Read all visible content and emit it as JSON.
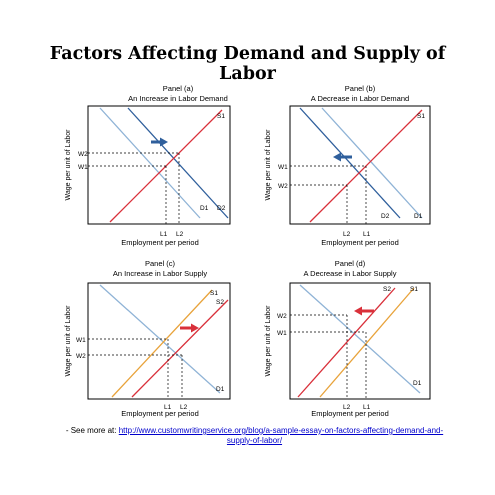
{
  "title": "Factors Affecting Demand and Supply of Labor",
  "footer": {
    "prefix": "- See more at: ",
    "link": "http://www.customwritingservice.org/blog/a-sample-essay-on-factors-affecting-demand-and-supply-of-labor/"
  },
  "colors": {
    "red": "#d9303a",
    "blue": "#2f5f9c",
    "light_blue": "#8fb3d6",
    "orange": "#e8a33b",
    "frame": "#000000"
  },
  "axis_labels": {
    "y": "Wage per unit of Labor",
    "x": "Employment per period"
  },
  "panels": [
    {
      "id": "a",
      "name": "Panel (a)",
      "subtitle": "An Increase in Labor Demand",
      "shift": "right",
      "supply_label": "S1",
      "demand_labels": [
        "D1",
        "D2"
      ],
      "wage_labels": [
        "W2",
        "W1"
      ],
      "employment_labels": [
        "L1",
        "L2"
      ],
      "arrow_color": "blue"
    },
    {
      "id": "b",
      "name": "Panel (b)",
      "subtitle": "A Decrease in Labor Demand",
      "shift": "left",
      "supply_label": "S1",
      "demand_labels": [
        "D2",
        "D1"
      ],
      "wage_labels": [
        "W1",
        "W2"
      ],
      "employment_labels": [
        "L2",
        "L1"
      ],
      "arrow_color": "blue"
    },
    {
      "id": "c",
      "name": "Panel (c)",
      "subtitle": "An Increase in Labor Supply",
      "shift": "right",
      "supply_labels": [
        "S1",
        "S2"
      ],
      "demand_label": "D1",
      "wage_labels": [
        "W1",
        "W2"
      ],
      "employment_labels": [
        "L1",
        "L2"
      ],
      "arrow_color": "red"
    },
    {
      "id": "d",
      "name": "Panel (d)",
      "subtitle": "A Decrease in Labor Supply",
      "shift": "left",
      "supply_labels": [
        "S2",
        "S1"
      ],
      "demand_label": "D1",
      "wage_labels": [
        "W2",
        "W1"
      ],
      "employment_labels": [
        "L2",
        "L1"
      ],
      "arrow_color": "red"
    }
  ]
}
